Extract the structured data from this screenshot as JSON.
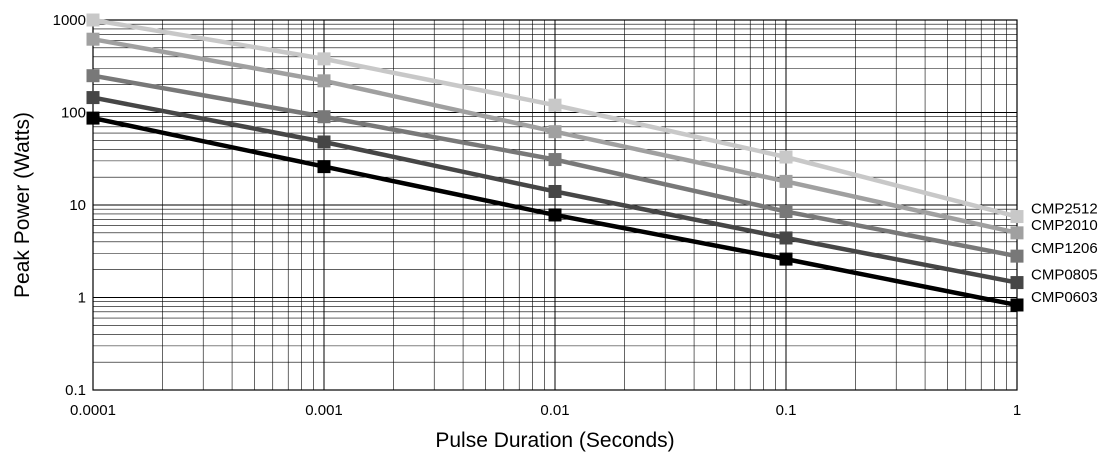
{
  "chart_data": {
    "type": "line",
    "title": "",
    "xlabel": "Pulse Duration (Seconds)",
    "ylabel": "Peak Power (Watts)",
    "x_scale": "log",
    "y_scale": "log",
    "xlim": [
      0.0001,
      1
    ],
    "ylim": [
      0.1,
      1000
    ],
    "grid": true,
    "x_tick_labels": [
      "0.0001",
      "0.001",
      "0.01",
      "0.1",
      "1"
    ],
    "y_tick_labels": [
      "0.1",
      "1",
      "10",
      "100",
      "1000"
    ],
    "x": [
      0.0001,
      0.001,
      0.01,
      0.1,
      1
    ],
    "legend_placement": "right end of each line",
    "series": [
      {
        "name": "CMP2512",
        "color": "#c8c8c8",
        "values": [
          1000,
          380,
          120,
          33,
          7.5
        ]
      },
      {
        "name": "CMP2010",
        "color": "#a0a0a0",
        "values": [
          620,
          220,
          62,
          18,
          5
        ]
      },
      {
        "name": "CMP1206",
        "color": "#787878",
        "values": [
          250,
          90,
          31,
          8.5,
          2.8
        ]
      },
      {
        "name": "CMP0805",
        "color": "#464646",
        "values": [
          145,
          48,
          14,
          4.4,
          1.45
        ]
      },
      {
        "name": "CMP0603",
        "color": "#000000",
        "values": [
          87,
          26,
          7.8,
          2.6,
          0.83
        ]
      }
    ]
  }
}
